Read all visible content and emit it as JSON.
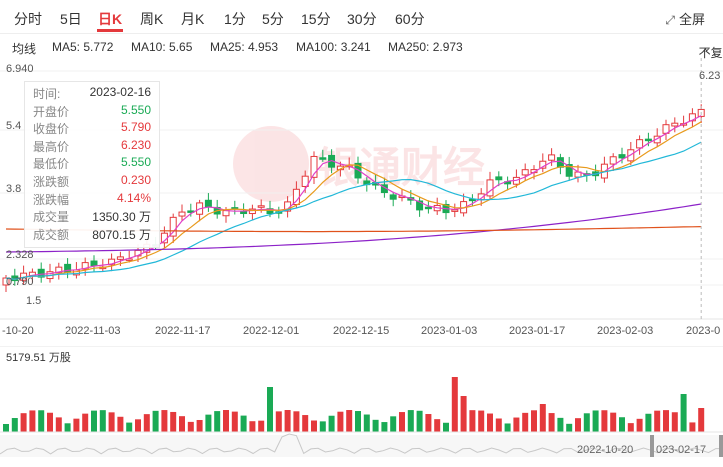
{
  "tabs": [
    "分时",
    "5日",
    "日K",
    "周K",
    "月K",
    "1分",
    "5分",
    "15分",
    "30分",
    "60分"
  ],
  "active_tab": "日K",
  "fullscreen_label": "全屏",
  "ma": {
    "label": "均线",
    "items": [
      {
        "text": "MA5: 5.772",
        "color": "#e040c8"
      },
      {
        "text": "MA10: 5.65",
        "color": "#e89a1c"
      },
      {
        "text": "MA25: 4.953",
        "color": "#22b8d8"
      },
      {
        "text": "MA100: 3.241",
        "color": "#8c22c8"
      },
      {
        "text": "MA250: 2.973",
        "color": "#e0521c"
      }
    ]
  },
  "adjust_label": "不复权",
  "info": {
    "rows": [
      {
        "k": "时间:",
        "v": "2023-02-16",
        "c": "neutral"
      },
      {
        "k": "开盘价",
        "v": "5.550",
        "c": "down"
      },
      {
        "k": "收盘价",
        "v": "5.790",
        "c": "up"
      },
      {
        "k": "最高价",
        "v": "6.230",
        "c": "up"
      },
      {
        "k": "最低价",
        "v": "5.550",
        "c": "down"
      },
      {
        "k": "涨跌额",
        "v": "0.230",
        "c": "up"
      },
      {
        "k": "涨跌幅",
        "v": "4.14%",
        "c": "up"
      },
      {
        "k": "成交量",
        "v": "1350.30 万",
        "c": "neutral"
      },
      {
        "k": "成交额",
        "v": "8070.15 万",
        "c": "neutral"
      }
    ]
  },
  "y_labels": [
    "6.940",
    "5.4",
    "3.8",
    "2.328",
    "0.790"
  ],
  "high_marker": "6.23",
  "low_marker": "1.5",
  "x_labels": [
    "-10-20",
    "2022-11-03",
    "2022-11-17",
    "2022-12-01",
    "2022-12-15",
    "2023-01-03",
    "2023-01-17",
    "2023-02-03",
    "2023-0"
  ],
  "volume_label": "5179.51 万股",
  "range_start": "2022-10-20",
  "range_end": "023-02-17",
  "watermark": "银通财经",
  "colors": {
    "up": "#e4393c",
    "down": "#1aaa55"
  }
}
